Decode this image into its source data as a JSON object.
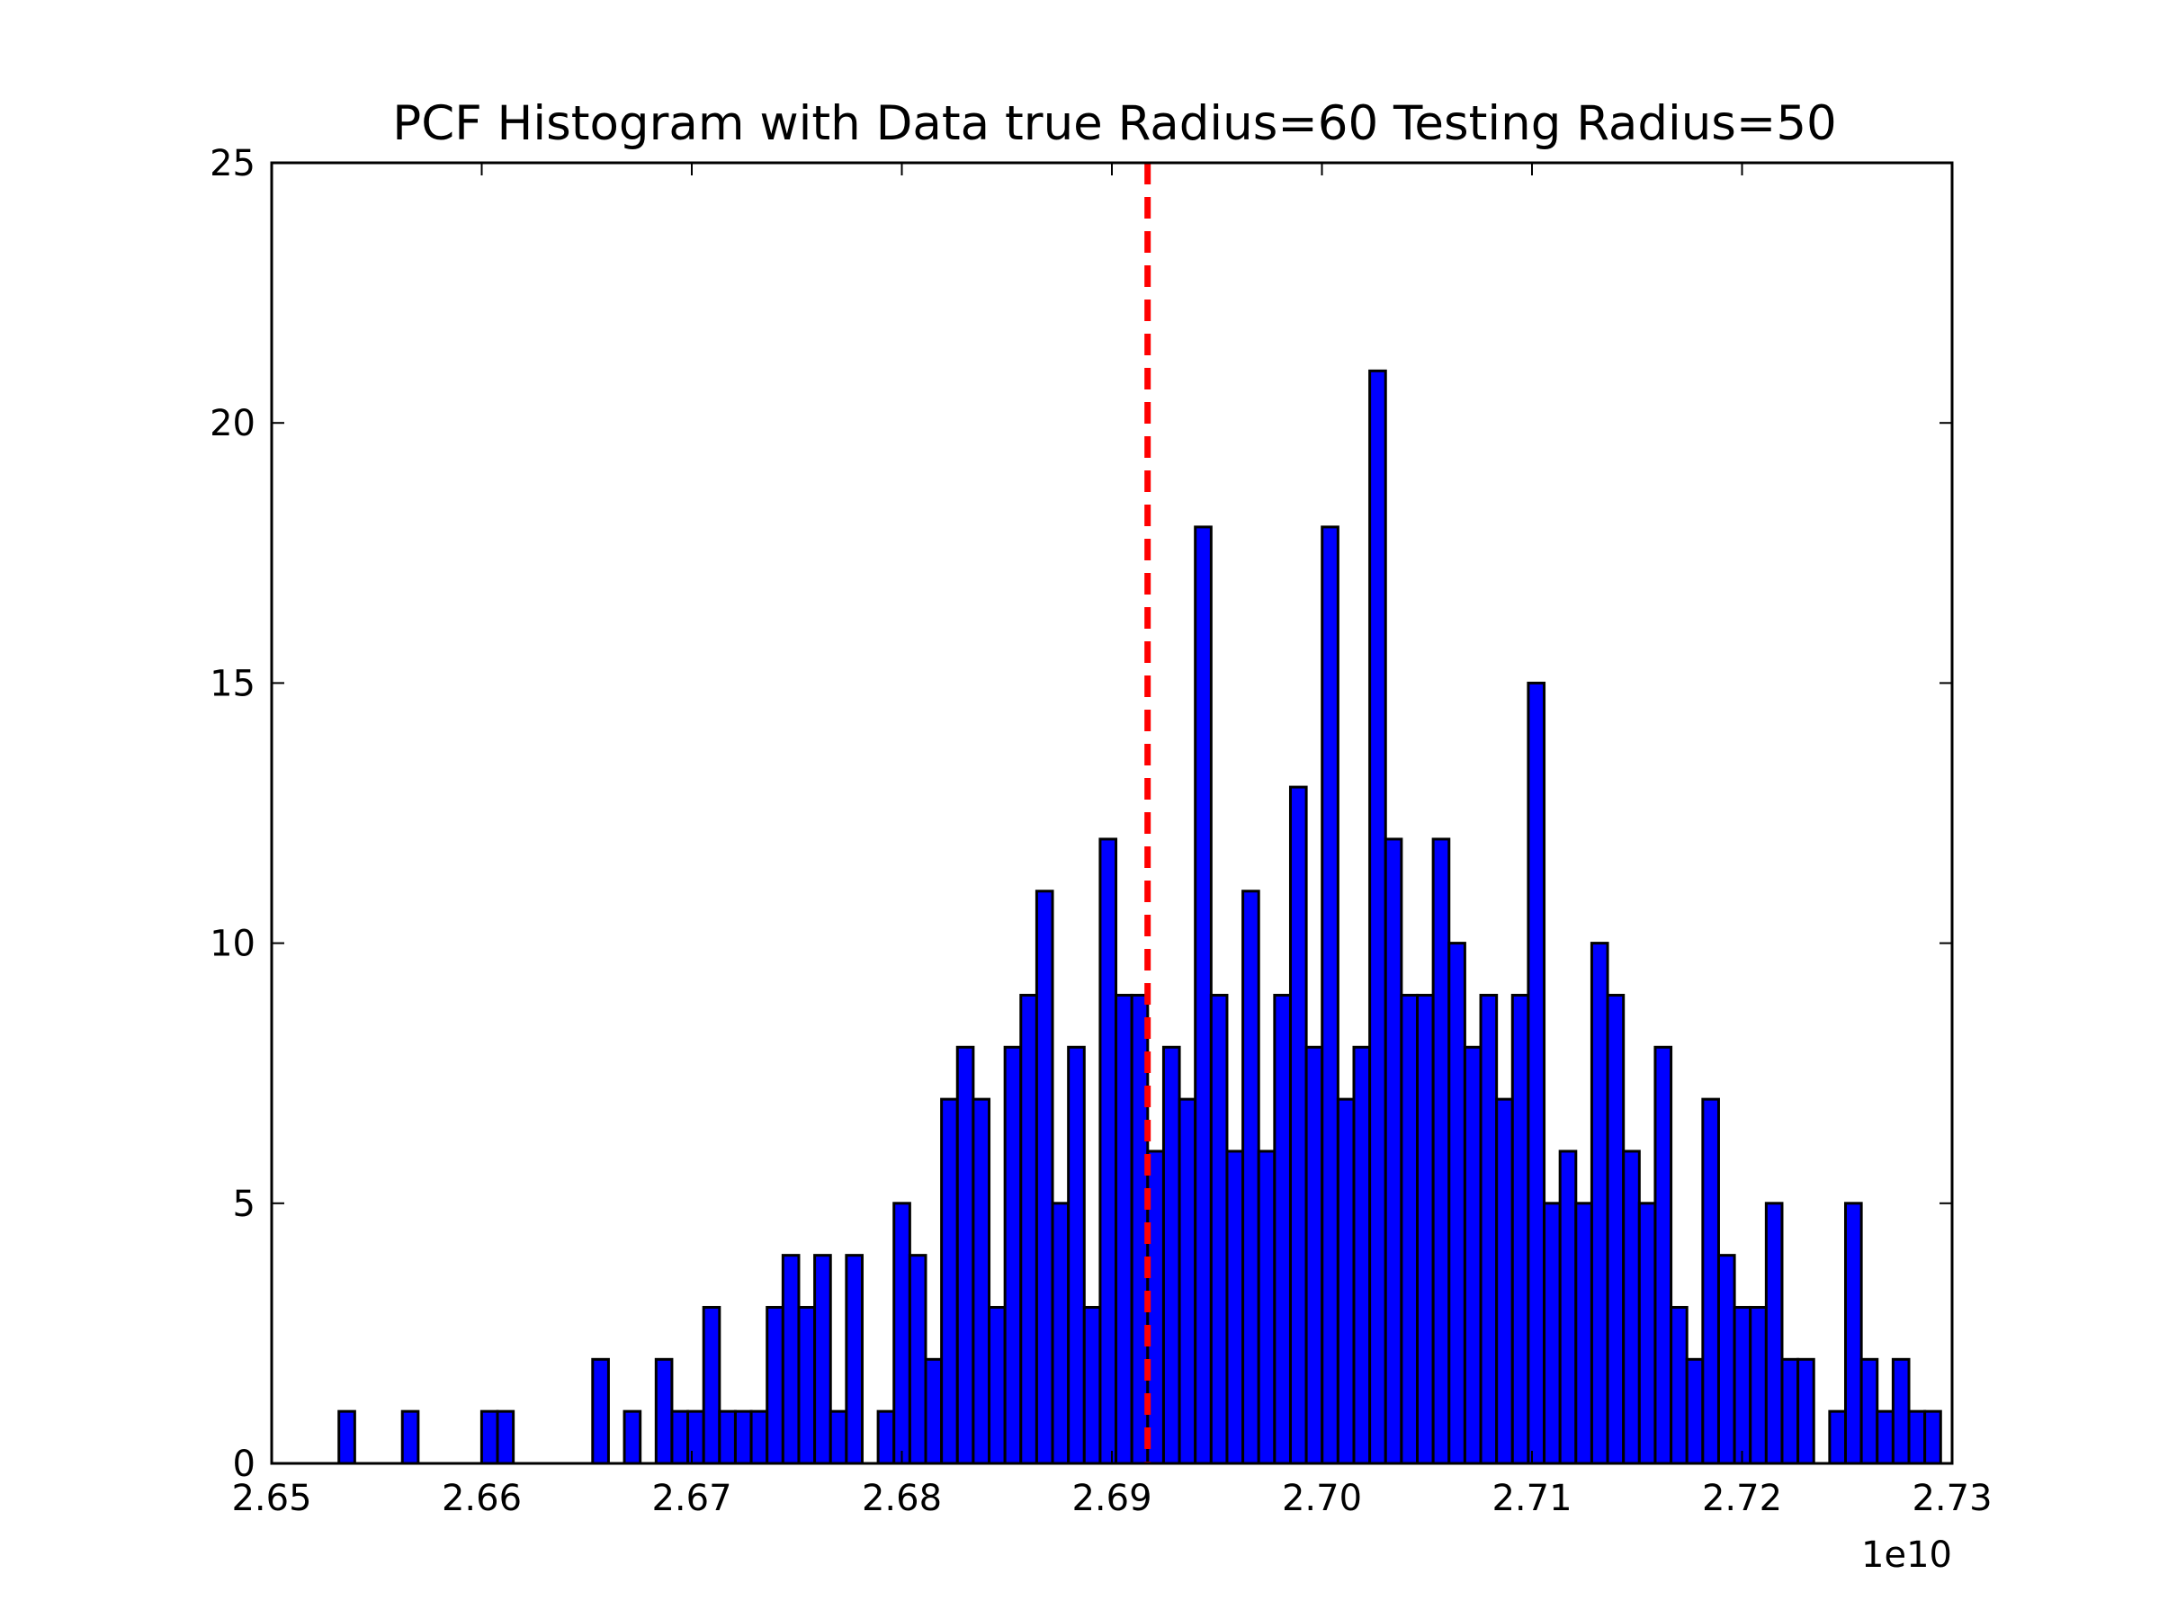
{
  "chart_data": {
    "type": "bar",
    "title": "PCF Histogram with Data true Radius=60 Testing Radius=50",
    "xlabel": "",
    "ylabel": "",
    "x_offset_label": "1e10",
    "xlim": [
      2.65,
      2.73
    ],
    "ylim": [
      0,
      25
    ],
    "x_ticks": [
      "2.65",
      "2.66",
      "2.67",
      "2.68",
      "2.69",
      "2.70",
      "2.71",
      "2.72",
      "2.73"
    ],
    "x_tick_values": [
      2.65,
      2.66,
      2.67,
      2.68,
      2.69,
      2.7,
      2.71,
      2.72,
      2.73
    ],
    "y_ticks": [
      "0",
      "5",
      "10",
      "15",
      "20",
      "25"
    ],
    "y_tick_values": [
      0,
      5,
      10,
      15,
      20,
      25
    ],
    "grid": false,
    "bin_start": 2.6532,
    "bin_width": 0.000755,
    "counts": [
      1,
      0,
      0,
      0,
      1,
      0,
      0,
      0,
      0,
      1,
      1,
      0,
      0,
      0,
      0,
      0,
      2,
      0,
      1,
      0,
      2,
      1,
      1,
      3,
      1,
      1,
      1,
      3,
      4,
      3,
      4,
      1,
      4,
      0,
      1,
      5,
      4,
      2,
      7,
      8,
      7,
      3,
      8,
      9,
      11,
      5,
      8,
      3,
      12,
      9,
      9,
      6,
      8,
      7,
      18,
      9,
      6,
      11,
      6,
      9,
      13,
      8,
      18,
      7,
      8,
      21,
      12,
      9,
      9,
      12,
      10,
      8,
      9,
      7,
      9,
      15,
      5,
      6,
      5,
      10,
      9,
      6,
      5,
      8,
      3,
      2,
      7,
      4,
      3,
      3,
      5,
      2,
      2,
      0,
      1,
      5,
      2,
      1,
      2,
      1,
      1
    ],
    "reference_line": {
      "x": 2.6917,
      "style": "dashed",
      "color": "#ff0000"
    },
    "bar_color": "#0000ff"
  }
}
